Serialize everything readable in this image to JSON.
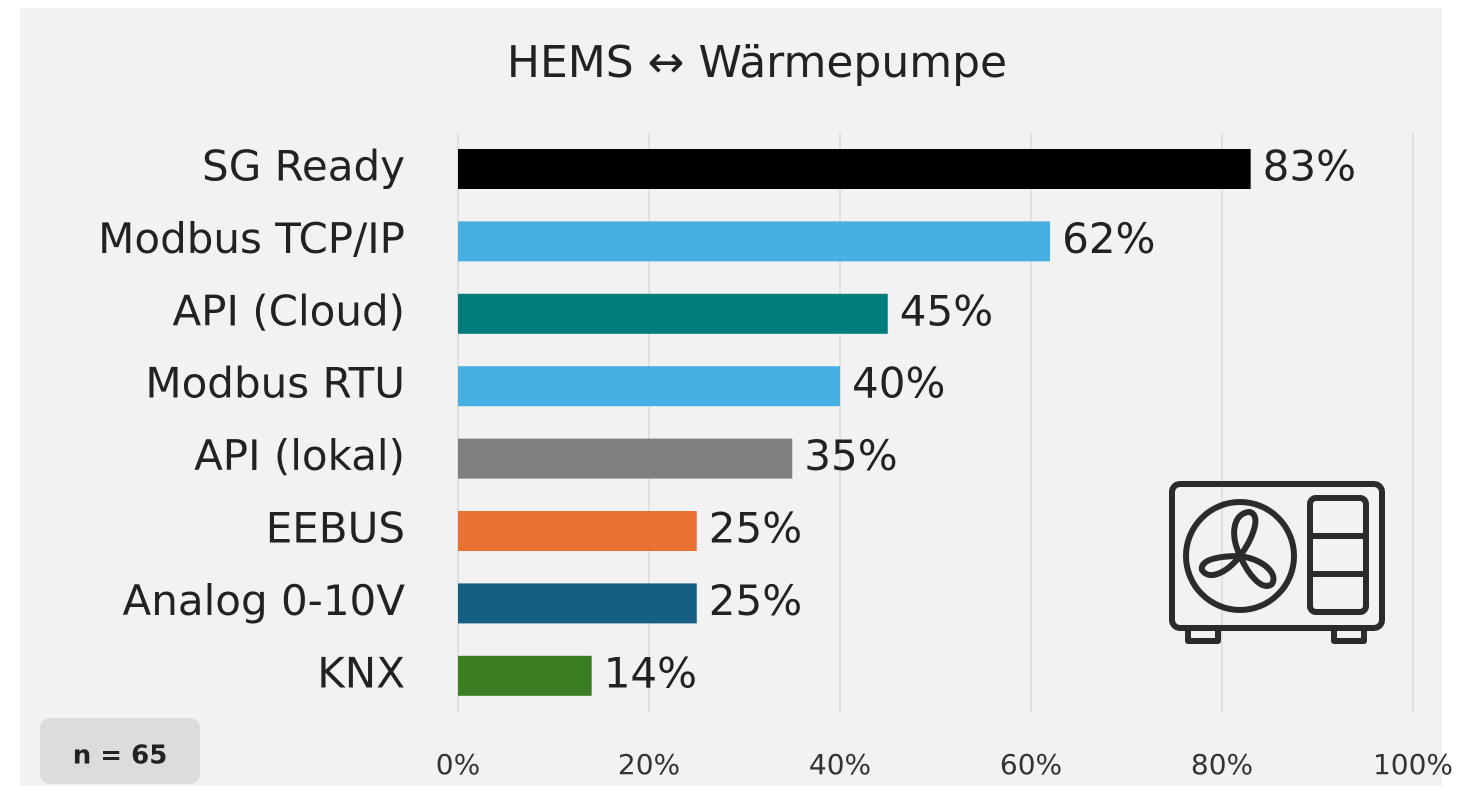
{
  "chart_data": {
    "type": "bar",
    "orientation": "horizontal",
    "title": "HEMS ↔ Wärmepumpe",
    "categories": [
      "SG Ready",
      "Modbus TCP/IP",
      "API (Cloud)",
      "Modbus RTU",
      "API (lokal)",
      "EEBUS",
      "Analog 0-10V",
      "KNX"
    ],
    "values": [
      83,
      62,
      45,
      40,
      35,
      25,
      25,
      14
    ],
    "value_labels": [
      "83%",
      "62%",
      "45%",
      "40%",
      "35%",
      "25%",
      "25%",
      "14%"
    ],
    "colors": [
      "#000000",
      "#45b0e1",
      "#007c7c",
      "#45b0e1",
      "#7f7f7f",
      "#e97132",
      "#145f82",
      "#3b7d23"
    ],
    "xlim": [
      0,
      100
    ],
    "xticks": [
      {
        "value": 0,
        "label": "0%"
      },
      {
        "value": 20,
        "label": "20%"
      },
      {
        "value": 40,
        "label": "40%"
      },
      {
        "value": 60,
        "label": "60%"
      },
      {
        "value": 80,
        "label": "80%"
      },
      {
        "value": 100,
        "label": "100%"
      }
    ],
    "grid": true,
    "annotation": "n = 65"
  }
}
